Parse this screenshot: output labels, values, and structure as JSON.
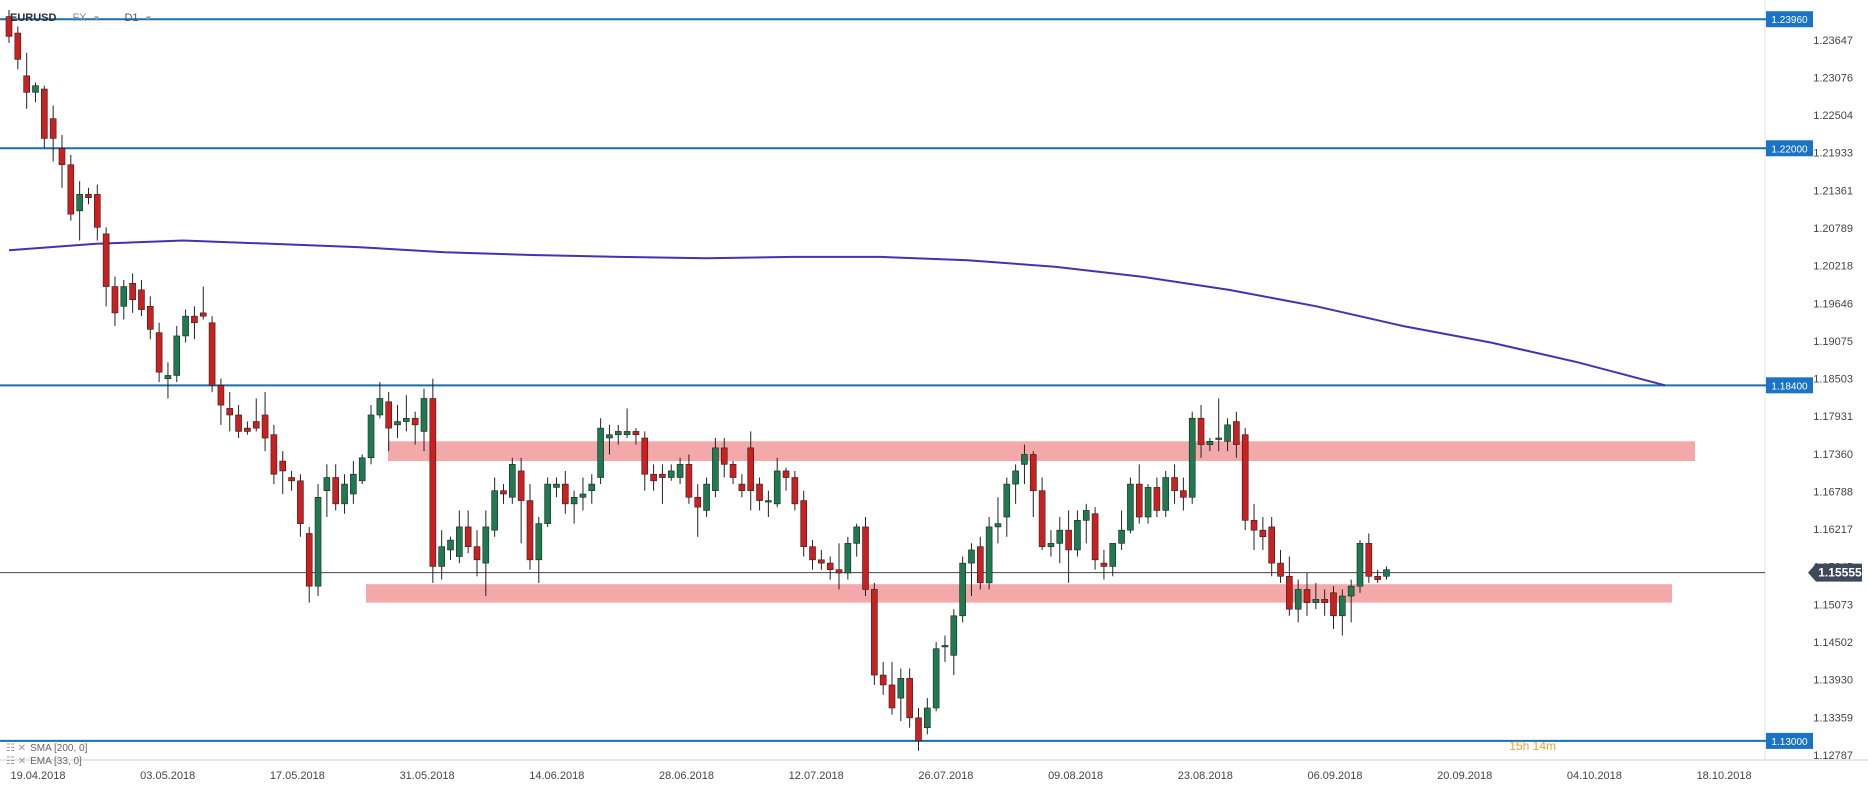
{
  "header": {
    "symbol": "EURUSD",
    "market": "FX",
    "timeframe": "D1"
  },
  "colors": {
    "bull": "#1e7b4f",
    "bear": "#cc1f1f",
    "level_line": "#1a6fae",
    "level_label_bg": "#1a73c4",
    "sma": "#4b2fb0",
    "zone": "#f19a9a",
    "price_label_bg": "#3e4a5a"
  },
  "indicators": [
    {
      "label": "SMA [200, 0]"
    },
    {
      "label": "EMA [33, 0]"
    }
  ],
  "timer": "15h 14m",
  "current_price": "1.15555",
  "chart_data": {
    "type": "candlestick",
    "ylim": [
      1.1271,
      1.241
    ],
    "y_ticks": [
      "1.23647",
      "1.23076",
      "1.22504",
      "1.21933",
      "1.21361",
      "1.20789",
      "1.20218",
      "1.19646",
      "1.19075",
      "1.18503",
      "1.17931",
      "1.17360",
      "1.16788",
      "1.16217",
      "1.15645",
      "1.15073",
      "1.14502",
      "1.13930",
      "1.13359",
      "1.12787"
    ],
    "x_ticks": [
      "19.04.2018",
      "03.05.2018",
      "17.05.2018",
      "31.05.2018",
      "14.06.2018",
      "28.06.2018",
      "12.07.2018",
      "26.07.2018",
      "09.08.2018",
      "23.08.2018",
      "06.09.2018",
      "20.09.2018",
      "04.10.2018",
      "18.10.2018"
    ],
    "horizontal_levels": [
      "1.23960",
      "1.22000",
      "1.18400",
      "1.13000"
    ],
    "zones": [
      {
        "from": 1.1725,
        "to": 1.1755
      },
      {
        "from": 1.151,
        "to": 1.1538
      }
    ],
    "sma_200": [
      1.2045,
      1.2055,
      1.206,
      1.2055,
      1.205,
      1.2042,
      1.2038,
      1.2035,
      1.2033,
      1.2035,
      1.2035,
      1.203,
      1.202,
      1.2005,
      1.1985,
      1.196,
      1.193,
      1.1905,
      1.1875,
      1.184
    ],
    "ohlc": [
      [
        1.24,
        1.241,
        1.236,
        1.237
      ],
      [
        1.2375,
        1.2385,
        1.232,
        1.2335
      ],
      [
        1.231,
        1.2345,
        1.226,
        1.2285
      ],
      [
        1.2285,
        1.23,
        1.227,
        1.2295
      ],
      [
        1.229,
        1.2295,
        1.22,
        1.2215
      ],
      [
        1.2245,
        1.2265,
        1.218,
        1.2215
      ],
      [
        1.22,
        1.222,
        1.214,
        1.2175
      ],
      [
        1.2175,
        1.219,
        1.209,
        1.21
      ],
      [
        1.2105,
        1.215,
        1.206,
        1.213
      ],
      [
        1.213,
        1.214,
        1.2115,
        1.2125
      ],
      [
        1.213,
        1.2145,
        1.206,
        1.208
      ],
      [
        1.207,
        1.208,
        1.196,
        1.199
      ],
      [
        1.199,
        1.2005,
        1.193,
        1.195
      ],
      [
        1.196,
        1.2,
        1.194,
        1.199
      ],
      [
        1.1995,
        1.201,
        1.195,
        1.197
      ],
      [
        1.1985,
        1.2,
        1.1945,
        1.1955
      ],
      [
        1.196,
        1.1975,
        1.191,
        1.1925
      ],
      [
        1.192,
        1.1935,
        1.1845,
        1.186
      ],
      [
        1.185,
        1.1875,
        1.182,
        1.1855
      ],
      [
        1.1855,
        1.193,
        1.1845,
        1.1915
      ],
      [
        1.1915,
        1.1955,
        1.1905,
        1.1945
      ],
      [
        1.1945,
        1.196,
        1.191,
        1.1935
      ],
      [
        1.195,
        1.199,
        1.194,
        1.1945
      ],
      [
        1.1935,
        1.1945,
        1.183,
        1.184
      ],
      [
        1.184,
        1.185,
        1.178,
        1.181
      ],
      [
        1.1805,
        1.183,
        1.177,
        1.1795
      ],
      [
        1.1795,
        1.181,
        1.176,
        1.177
      ],
      [
        1.1775,
        1.1785,
        1.1765,
        1.177
      ],
      [
        1.1785,
        1.182,
        1.177,
        1.1775
      ],
      [
        1.1795,
        1.183,
        1.174,
        1.176
      ],
      [
        1.1765,
        1.178,
        1.169,
        1.1705
      ],
      [
        1.1725,
        1.174,
        1.1675,
        1.171
      ],
      [
        1.17,
        1.171,
        1.168,
        1.1695
      ],
      [
        1.1695,
        1.1705,
        1.161,
        1.163
      ],
      [
        1.1615,
        1.1625,
        1.151,
        1.1535
      ],
      [
        1.1535,
        1.169,
        1.152,
        1.167
      ],
      [
        1.168,
        1.172,
        1.164,
        1.17
      ],
      [
        1.17,
        1.172,
        1.165,
        1.166
      ],
      [
        1.166,
        1.1705,
        1.1645,
        1.169
      ],
      [
        1.1675,
        1.1725,
        1.166,
        1.1705
      ],
      [
        1.1695,
        1.1735,
        1.169,
        1.173
      ],
      [
        1.173,
        1.181,
        1.172,
        1.1795
      ],
      [
        1.1795,
        1.1845,
        1.179,
        1.182
      ],
      [
        1.1815,
        1.183,
        1.174,
        1.1775
      ],
      [
        1.178,
        1.181,
        1.176,
        1.1785
      ],
      [
        1.1785,
        1.1825,
        1.177,
        1.179
      ],
      [
        1.179,
        1.18,
        1.175,
        1.178
      ],
      [
        1.177,
        1.1835,
        1.174,
        1.182
      ],
      [
        1.182,
        1.185,
        1.154,
        1.1565
      ],
      [
        1.1565,
        1.162,
        1.1545,
        1.1595
      ],
      [
        1.159,
        1.161,
        1.1575,
        1.1605
      ],
      [
        1.158,
        1.165,
        1.157,
        1.1625
      ],
      [
        1.1625,
        1.165,
        1.1585,
        1.1595
      ],
      [
        1.1595,
        1.162,
        1.155,
        1.1575
      ],
      [
        1.157,
        1.165,
        1.152,
        1.1625
      ],
      [
        1.162,
        1.17,
        1.161,
        1.168
      ],
      [
        1.168,
        1.169,
        1.166,
        1.1675
      ],
      [
        1.167,
        1.173,
        1.166,
        1.172
      ],
      [
        1.171,
        1.173,
        1.16,
        1.1665
      ],
      [
        1.1665,
        1.169,
        1.156,
        1.1575
      ],
      [
        1.1575,
        1.164,
        1.154,
        1.163
      ],
      [
        1.163,
        1.17,
        1.1625,
        1.169
      ],
      [
        1.1685,
        1.17,
        1.167,
        1.169
      ],
      [
        1.169,
        1.171,
        1.1645,
        1.166
      ],
      [
        1.166,
        1.168,
        1.163,
        1.167
      ],
      [
        1.167,
        1.17,
        1.165,
        1.1675
      ],
      [
        1.168,
        1.1705,
        1.166,
        1.169
      ],
      [
        1.17,
        1.179,
        1.169,
        1.1775
      ],
      [
        1.176,
        1.178,
        1.1735,
        1.1765
      ],
      [
        1.1765,
        1.178,
        1.175,
        1.177
      ],
      [
        1.1765,
        1.1805,
        1.176,
        1.177
      ],
      [
        1.177,
        1.1775,
        1.175,
        1.1765
      ],
      [
        1.176,
        1.177,
        1.168,
        1.1705
      ],
      [
        1.1705,
        1.172,
        1.168,
        1.1695
      ],
      [
        1.1705,
        1.172,
        1.166,
        1.17
      ],
      [
        1.17,
        1.172,
        1.1695,
        1.171
      ],
      [
        1.17,
        1.173,
        1.169,
        1.172
      ],
      [
        1.172,
        1.1735,
        1.166,
        1.167
      ],
      [
        1.167,
        1.169,
        1.161,
        1.1655
      ],
      [
        1.165,
        1.17,
        1.164,
        1.169
      ],
      [
        1.168,
        1.176,
        1.167,
        1.1745
      ],
      [
        1.1745,
        1.176,
        1.17,
        1.172
      ],
      [
        1.172,
        1.1725,
        1.169,
        1.17
      ],
      [
        1.169,
        1.1705,
        1.167,
        1.168
      ],
      [
        1.1745,
        1.177,
        1.165,
        1.168
      ],
      [
        1.169,
        1.17,
        1.165,
        1.1665
      ],
      [
        1.1665,
        1.168,
        1.164,
        1.1665
      ],
      [
        1.166,
        1.173,
        1.1655,
        1.171
      ],
      [
        1.171,
        1.1715,
        1.168,
        1.17
      ],
      [
        1.17,
        1.171,
        1.165,
        1.166
      ],
      [
        1.1665,
        1.168,
        1.158,
        1.1595
      ],
      [
        1.1595,
        1.1605,
        1.156,
        1.1575
      ],
      [
        1.1575,
        1.159,
        1.156,
        1.157
      ],
      [
        1.157,
        1.158,
        1.1545,
        1.156
      ],
      [
        1.156,
        1.16,
        1.153,
        1.1555
      ],
      [
        1.1555,
        1.161,
        1.1545,
        1.16
      ],
      [
        1.16,
        1.163,
        1.158,
        1.1625
      ],
      [
        1.1625,
        1.164,
        1.152,
        1.153
      ],
      [
        1.153,
        1.154,
        1.1385,
        1.14
      ],
      [
        1.14,
        1.142,
        1.137,
        1.1385
      ],
      [
        1.1385,
        1.142,
        1.134,
        1.135
      ],
      [
        1.1365,
        1.141,
        1.133,
        1.1395
      ],
      [
        1.1395,
        1.141,
        1.132,
        1.1335
      ],
      [
        1.1335,
        1.135,
        1.1285,
        1.13
      ],
      [
        1.132,
        1.1365,
        1.131,
        1.135
      ],
      [
        1.135,
        1.145,
        1.1345,
        1.144
      ],
      [
        1.1445,
        1.146,
        1.142,
        1.1445
      ],
      [
        1.143,
        1.15,
        1.14,
        1.149
      ],
      [
        1.149,
        1.158,
        1.148,
        1.157
      ],
      [
        1.157,
        1.16,
        1.152,
        1.159
      ],
      [
        1.1595,
        1.161,
        1.153,
        1.154
      ],
      [
        1.154,
        1.164,
        1.153,
        1.1625
      ],
      [
        1.1625,
        1.167,
        1.16,
        1.163
      ],
      [
        1.164,
        1.17,
        1.161,
        1.169
      ],
      [
        1.169,
        1.172,
        1.166,
        1.171
      ],
      [
        1.172,
        1.175,
        1.169,
        1.1735
      ],
      [
        1.1735,
        1.174,
        1.164,
        1.168
      ],
      [
        1.168,
        1.17,
        1.159,
        1.1595
      ],
      [
        1.1595,
        1.162,
        1.158,
        1.16
      ],
      [
        1.16,
        1.164,
        1.157,
        1.162
      ],
      [
        1.162,
        1.165,
        1.154,
        1.159
      ],
      [
        1.159,
        1.165,
        1.158,
        1.1635
      ],
      [
        1.1635,
        1.166,
        1.16,
        1.165
      ],
      [
        1.1645,
        1.1655,
        1.156,
        1.1575
      ],
      [
        1.157,
        1.159,
        1.1545,
        1.1565
      ],
      [
        1.1565,
        1.16,
        1.155,
        1.16
      ],
      [
        1.16,
        1.165,
        1.159,
        1.162
      ],
      [
        1.162,
        1.17,
        1.1615,
        1.169
      ],
      [
        1.169,
        1.172,
        1.163,
        1.164
      ],
      [
        1.164,
        1.169,
        1.163,
        1.1685
      ],
      [
        1.1685,
        1.17,
        1.164,
        1.165
      ],
      [
        1.165,
        1.171,
        1.164,
        1.17
      ],
      [
        1.17,
        1.172,
        1.166,
        1.168
      ],
      [
        1.168,
        1.17,
        1.165,
        1.167
      ],
      [
        1.167,
        1.18,
        1.166,
        1.179
      ],
      [
        1.179,
        1.181,
        1.173,
        1.175
      ],
      [
        1.175,
        1.176,
        1.174,
        1.1755
      ],
      [
        1.176,
        1.182,
        1.174,
        1.176
      ],
      [
        1.1755,
        1.179,
        1.174,
        1.178
      ],
      [
        1.1785,
        1.18,
        1.173,
        1.175
      ],
      [
        1.1765,
        1.1775,
        1.162,
        1.1635
      ],
      [
        1.1635,
        1.166,
        1.159,
        1.162
      ],
      [
        1.162,
        1.164,
        1.159,
        1.161
      ],
      [
        1.1625,
        1.164,
        1.155,
        1.157
      ],
      [
        1.157,
        1.159,
        1.154,
        1.155
      ],
      [
        1.155,
        1.158,
        1.149,
        1.15
      ],
      [
        1.15,
        1.1545,
        1.148,
        1.153
      ],
      [
        1.153,
        1.1555,
        1.149,
        1.151
      ],
      [
        1.151,
        1.154,
        1.15,
        1.1515
      ],
      [
        1.1515,
        1.153,
        1.149,
        1.151
      ],
      [
        1.1525,
        1.1535,
        1.147,
        1.149
      ],
      [
        1.149,
        1.153,
        1.146,
        1.152
      ],
      [
        1.152,
        1.1545,
        1.148,
        1.1535
      ],
      [
        1.1535,
        1.1605,
        1.1525,
        1.16
      ],
      [
        1.16,
        1.1615,
        1.154,
        1.155
      ],
      [
        1.155,
        1.156,
        1.154,
        1.1545
      ],
      [
        1.155,
        1.1565,
        1.1545,
        1.156
      ]
    ]
  }
}
